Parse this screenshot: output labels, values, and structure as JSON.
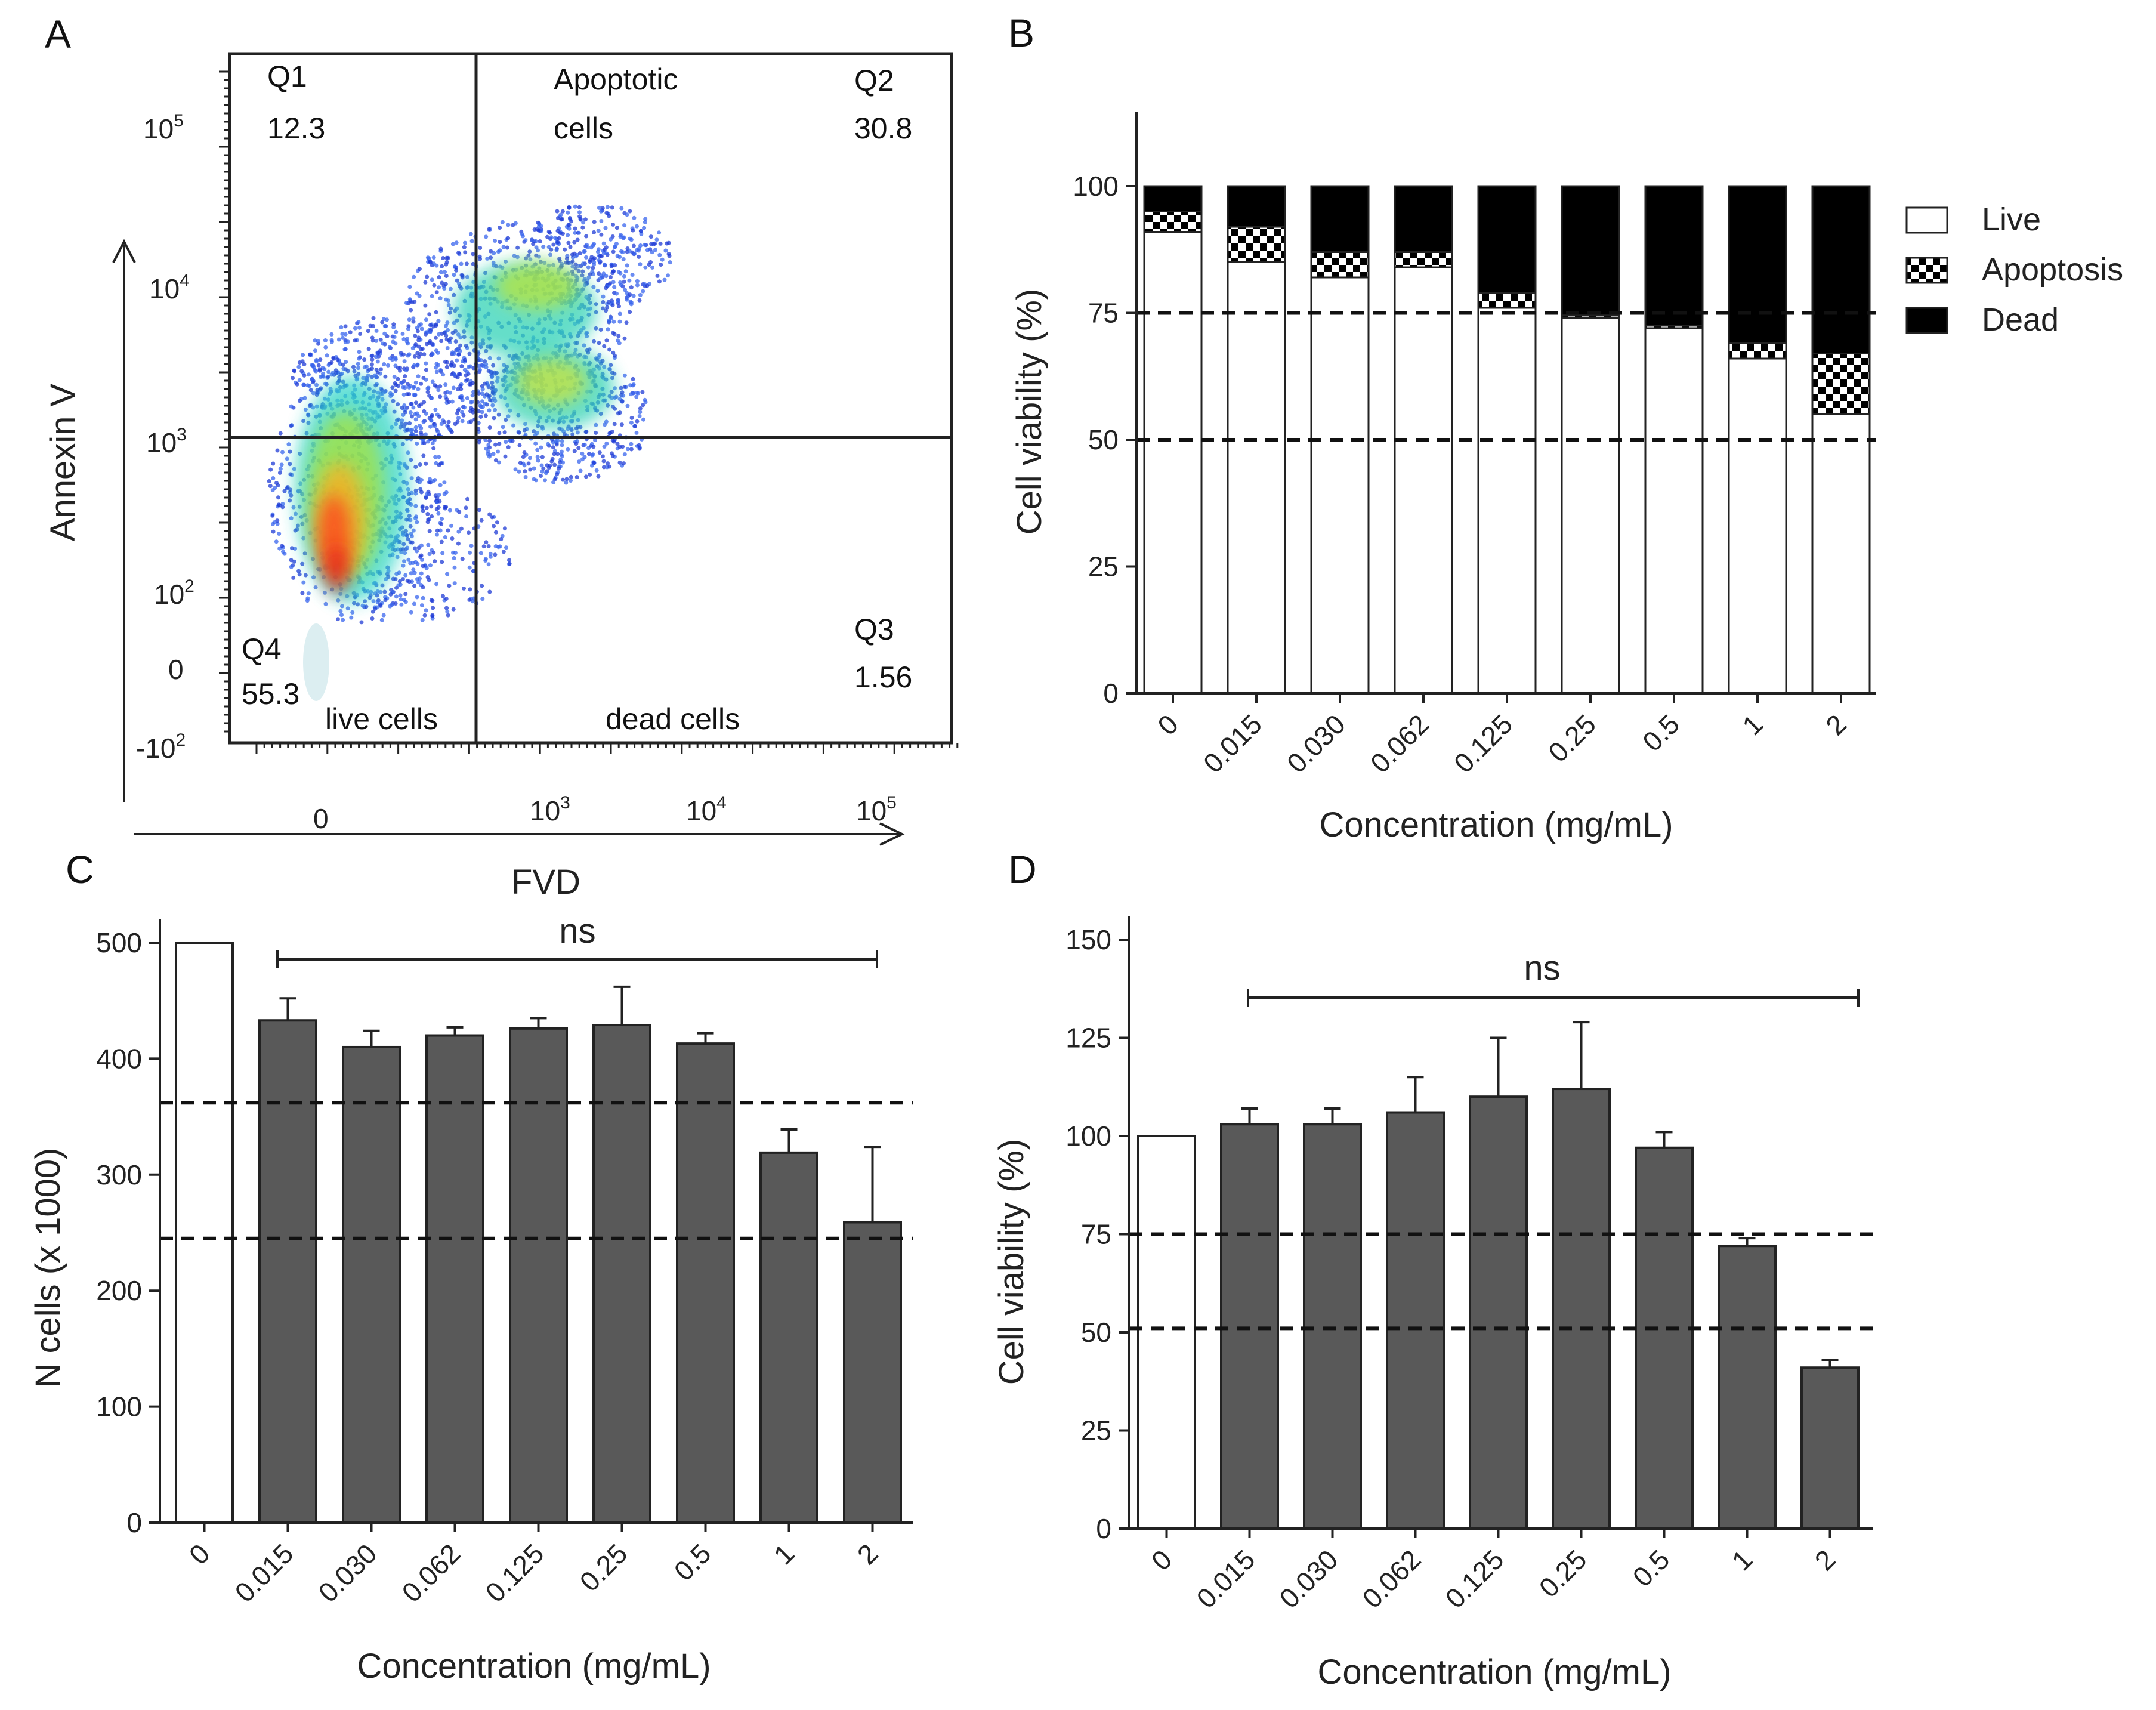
{
  "colors": {
    "axis": "#222222",
    "bar_dark": "#595959",
    "bar_white": "#ffffff",
    "dead": "#000000",
    "dash": "#111111"
  },
  "chart_data": [
    {
      "panel": "A",
      "type": "scatter",
      "title": "",
      "xlabel": "FVD",
      "ylabel": "Annexin V",
      "x_tick_labels": [
        "0",
        "10",
        "10",
        "10"
      ],
      "x_tick_exponents": [
        "",
        "3",
        "4",
        "5"
      ],
      "y_tick_labels": [
        "-10",
        "0",
        "10",
        "10",
        "10",
        "10"
      ],
      "y_tick_exponents": [
        "2",
        "",
        "2",
        "3",
        "4",
        "5"
      ],
      "quadrants": [
        {
          "id": "Q1",
          "value": "12.3",
          "label": ""
        },
        {
          "id": "Q2",
          "value": "30.8",
          "label_line1": "Apoptotic",
          "label_line2": "cells"
        },
        {
          "id": "Q3",
          "value": "1.56",
          "label": "dead cells"
        },
        {
          "id": "Q4",
          "value": "55.3",
          "label": "live cells"
        }
      ]
    },
    {
      "panel": "B",
      "type": "bar",
      "stacked": true,
      "xlabel": "Concentration (mg/mL)",
      "ylabel": "Cell viability (%)",
      "categories": [
        "0",
        "0.015",
        "0.030",
        "0.062",
        "0.125",
        "0.25",
        "0.5",
        "1",
        "2"
      ],
      "yticks": [
        "0",
        "25",
        "50",
        "75",
        "100"
      ],
      "ylim": [
        0,
        110
      ],
      "reference_lines": [
        50,
        75
      ],
      "series": [
        {
          "name": "Live",
          "values": [
            91,
            85,
            82,
            84,
            76,
            74,
            72,
            66,
            55
          ]
        },
        {
          "name": "Apoptosis",
          "values": [
            4,
            7,
            5,
            3,
            3,
            0.5,
            0.5,
            3,
            12
          ]
        },
        {
          "name": "Dead",
          "values": [
            5,
            8,
            13,
            13,
            21,
            25.5,
            27.5,
            31,
            33
          ]
        }
      ]
    },
    {
      "panel": "C",
      "type": "bar",
      "xlabel": "Concentration (mg/mL)",
      "ylabel": "N cells (x 1000)",
      "categories": [
        "0",
        "0.015",
        "0.030",
        "0.062",
        "0.125",
        "0.25",
        "0.5",
        "1",
        "2"
      ],
      "yticks": [
        "0",
        "100",
        "200",
        "300",
        "400",
        "500"
      ],
      "ylim": [
        0,
        500
      ],
      "values": [
        500,
        433,
        410,
        420,
        426,
        429,
        413,
        319,
        259
      ],
      "errors": [
        0,
        19,
        14,
        7,
        9,
        33,
        9,
        20,
        65
      ],
      "reference_lines": [
        245,
        362
      ],
      "significance": "ns"
    },
    {
      "panel": "D",
      "type": "bar",
      "xlabel": "Concentration (mg/mL)",
      "ylabel": "Cell viability (%)",
      "categories": [
        "0",
        "0.015",
        "0.030",
        "0.062",
        "0.125",
        "0.25",
        "0.5",
        "1",
        "2"
      ],
      "yticks": [
        "0",
        "25",
        "50",
        "75",
        "100",
        "125",
        "150"
      ],
      "ylim": [
        0,
        150
      ],
      "values": [
        100,
        103,
        103,
        106,
        110,
        112,
        97,
        72,
        41
      ],
      "errors": [
        0,
        4,
        4,
        9,
        15,
        17,
        4,
        2,
        2
      ],
      "reference_lines": [
        51,
        75
      ],
      "significance": "ns"
    }
  ]
}
